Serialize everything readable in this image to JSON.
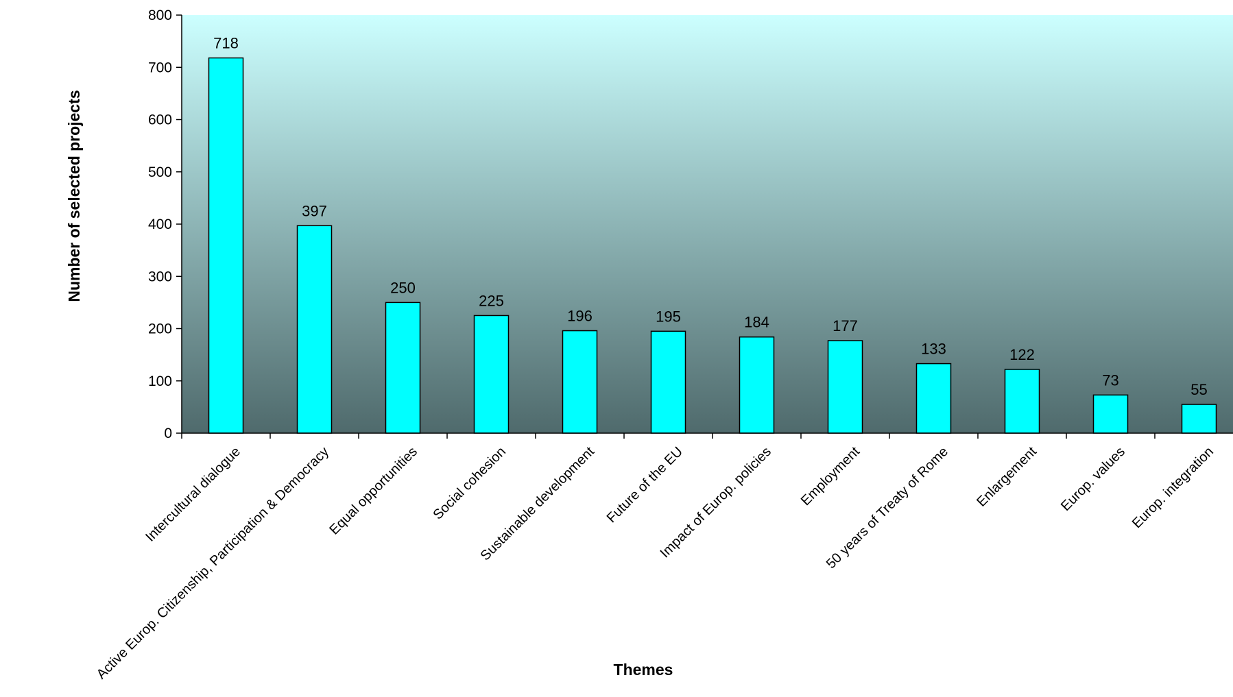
{
  "chart_data": {
    "type": "bar",
    "title": "",
    "xlabel": "Themes",
    "ylabel": "Number of selected projects",
    "ylim": [
      0,
      800
    ],
    "yticks": [
      0,
      100,
      200,
      300,
      400,
      500,
      600,
      700,
      800
    ],
    "categories": [
      "Intercultural dialogue",
      "Active Europ. Citizenship, Participation & Democracy",
      "Equal opportunities",
      "Social cohesion",
      "Sustainable development",
      "Future of the EU",
      "Impact of Europ. policies",
      "Employment",
      "50 years of Treaty of Rome",
      "Enlargement",
      "Europ. values",
      "Europ. integration"
    ],
    "values": [
      718,
      397,
      250,
      225,
      196,
      195,
      184,
      177,
      133,
      122,
      73,
      55
    ],
    "data_labels": [
      "718",
      "397",
      "250",
      "225",
      "196",
      "195",
      "184",
      "177",
      "133",
      "122",
      "73",
      "55"
    ],
    "grid": false,
    "legend": "none",
    "colors": {
      "bar_fill": "#00FFFF",
      "bar_stroke": "#000000",
      "plot_gradient_top": "#CCFFFF",
      "plot_gradient_bottom": "#4F6A6C"
    }
  }
}
